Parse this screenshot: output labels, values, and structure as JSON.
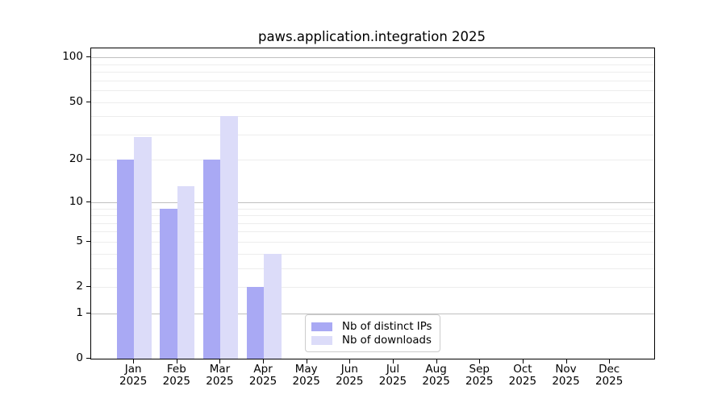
{
  "title": "paws.application.integration 2025",
  "legend": {
    "items": [
      {
        "label": "Nb of distinct IPs",
        "color": "#a9a9f4"
      },
      {
        "label": "Nb of downloads",
        "color": "#dcdcf9"
      }
    ]
  },
  "chart_data": {
    "type": "bar",
    "title": "paws.application.integration 2025",
    "categories": [
      "Jan",
      "Feb",
      "Mar",
      "Apr",
      "May",
      "Jun",
      "Jul",
      "Aug",
      "Sep",
      "Oct",
      "Nov",
      "Dec"
    ],
    "year_label": "2025",
    "series": [
      {
        "name": "Nb of distinct IPs",
        "color": "#a9a9f4",
        "values": [
          20,
          9,
          20,
          2,
          0,
          0,
          0,
          0,
          0,
          0,
          0,
          0
        ]
      },
      {
        "name": "Nb of downloads",
        "color": "#dcdcf9",
        "values": [
          29,
          13,
          40,
          4,
          0,
          0,
          0,
          0,
          0,
          0,
          0,
          0
        ]
      }
    ],
    "y_scale": "log1p",
    "y_ticks": [
      0,
      1,
      2,
      5,
      10,
      20,
      50,
      100
    ],
    "y_gridlines_major": [
      1,
      10,
      100
    ],
    "y_gridlines_minor": [
      2,
      3,
      4,
      5,
      6,
      7,
      8,
      9,
      20,
      30,
      40,
      50,
      60,
      70,
      80,
      90
    ],
    "ylim": [
      0,
      115
    ],
    "grid": "on",
    "legend_position": "lower center"
  },
  "colors": {
    "grid_major": "#c0c0c0",
    "grid_minor": "#ededed",
    "axis": "#000000",
    "background": "#ffffff",
    "legend_border": "#cccccc"
  }
}
